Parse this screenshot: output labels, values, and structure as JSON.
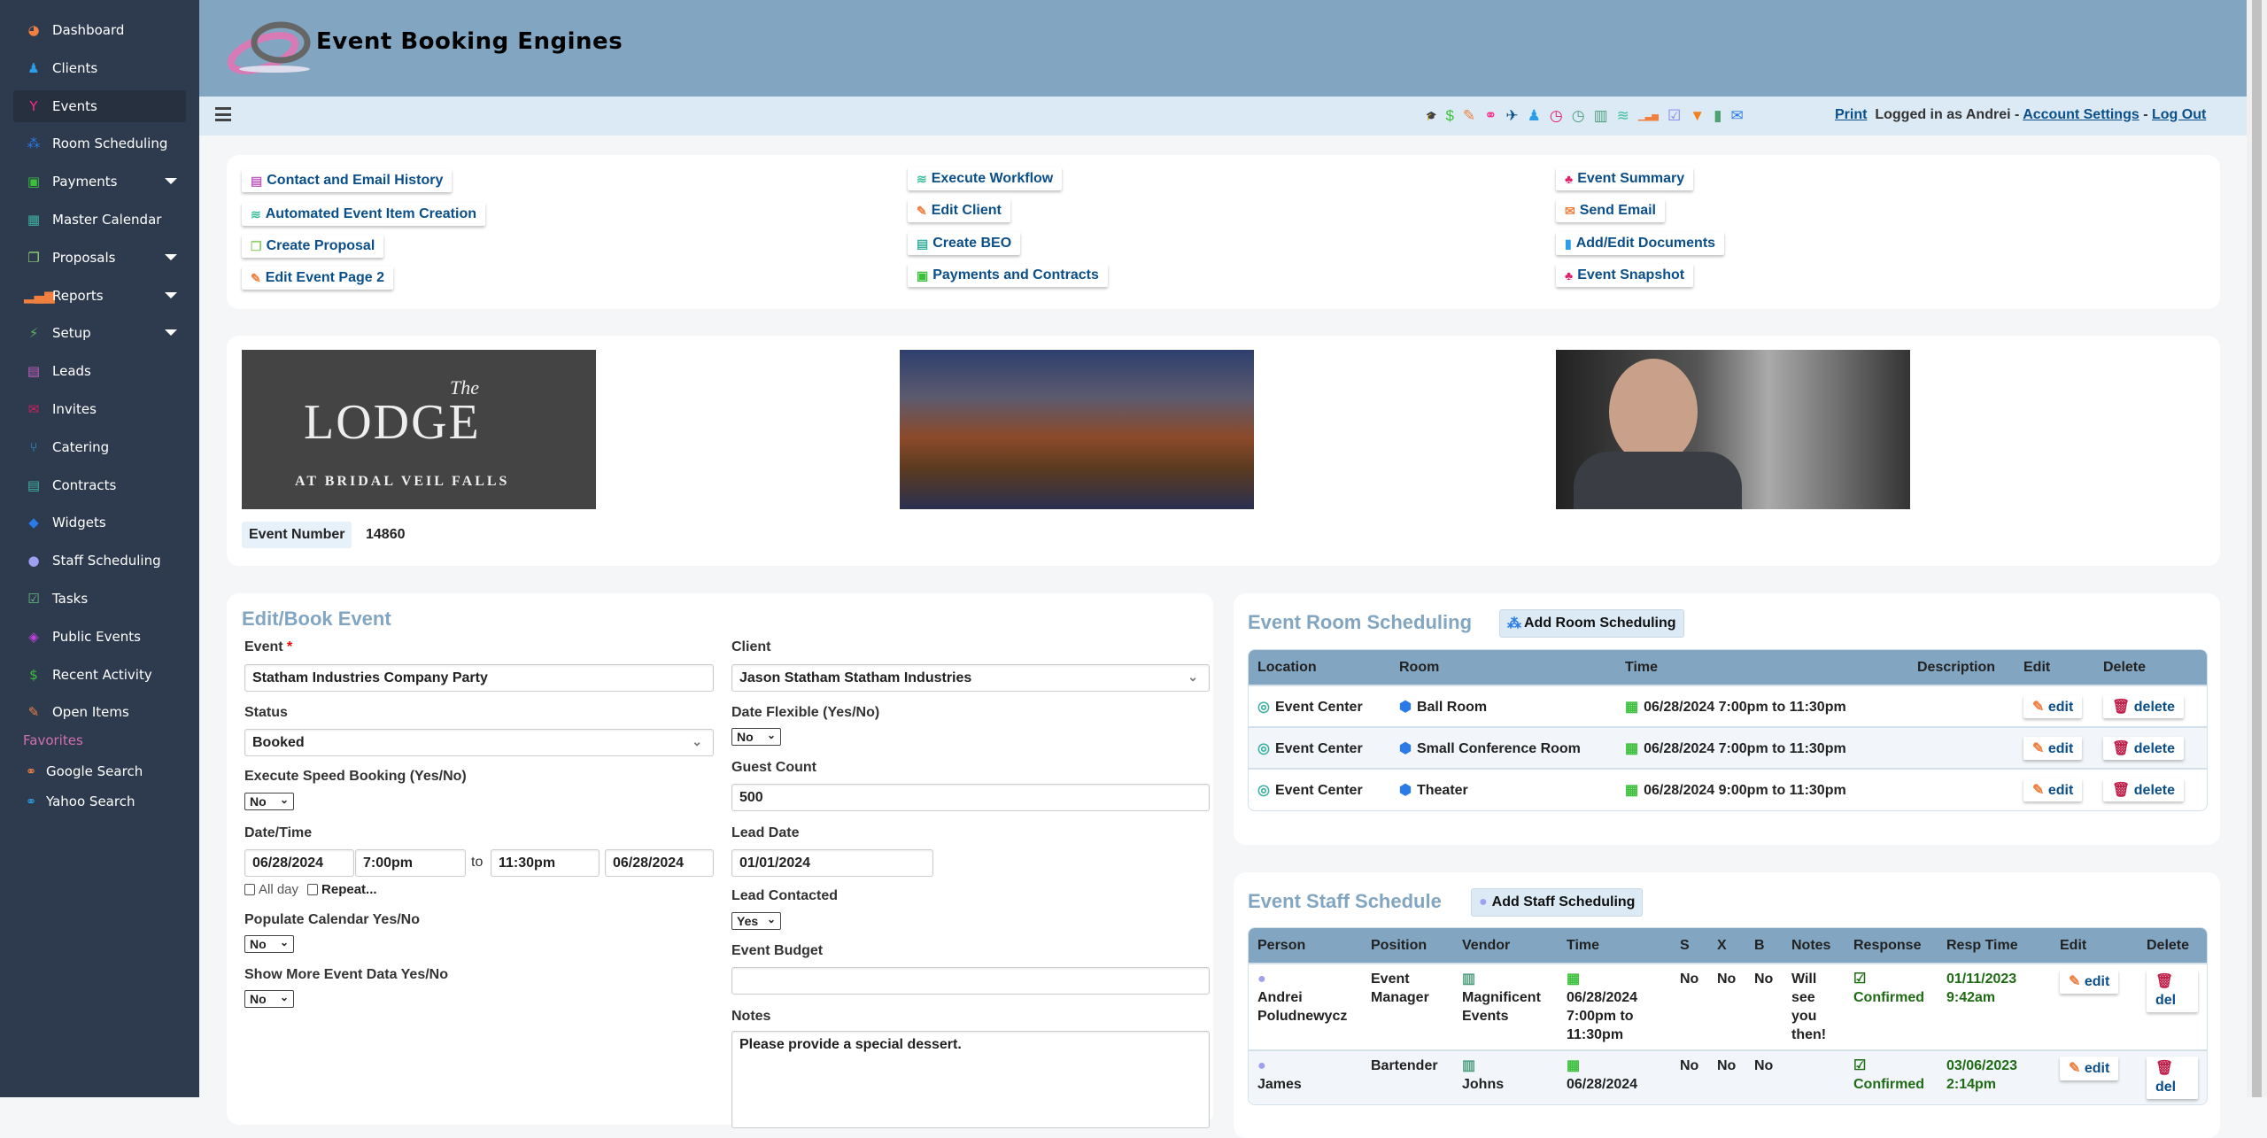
{
  "app": {
    "title": "Event Booking Engines"
  },
  "sidebar": {
    "items": [
      {
        "label": "Dashboard",
        "icon": "pie-chart-icon",
        "color": "#f08040"
      },
      {
        "label": "Clients",
        "icon": "person-icon",
        "color": "#2a9ee8"
      },
      {
        "label": "Events",
        "icon": "cocktail-icon",
        "color": "#ff2a8a",
        "active": true
      },
      {
        "label": "Room Scheduling",
        "icon": "cubes-icon",
        "color": "#2a7ae8"
      },
      {
        "label": "Payments",
        "icon": "money-icon",
        "color": "#3cc03c",
        "caret": true
      },
      {
        "label": "Master Calendar",
        "icon": "calendar-icon",
        "color": "#3cb0a0"
      },
      {
        "label": "Proposals",
        "icon": "copy-icon",
        "color": "#90d070",
        "caret": true
      },
      {
        "label": "Reports",
        "icon": "bar-chart-icon",
        "color": "#f08040",
        "caret": true
      },
      {
        "label": "Setup",
        "icon": "plug-icon",
        "color": "#60b060",
        "caret": true
      },
      {
        "label": "Leads",
        "icon": "list-icon",
        "color": "#c060c0"
      },
      {
        "label": "Invites",
        "icon": "envelope-icon",
        "color": "#d02060"
      },
      {
        "label": "Catering",
        "icon": "utensils-icon",
        "color": "#2a9ee8"
      },
      {
        "label": "Contracts",
        "icon": "document-icon",
        "color": "#3cb0a0"
      },
      {
        "label": "Widgets",
        "icon": "android-icon",
        "color": "#2a7ae8"
      },
      {
        "label": "Staff Scheduling",
        "icon": "user-icon",
        "color": "#a0a0f0"
      },
      {
        "label": "Tasks",
        "icon": "checkbox-icon",
        "color": "#60c080"
      },
      {
        "label": "Public Events",
        "icon": "ticket-icon",
        "color": "#c040e0"
      },
      {
        "label": "Recent Activity",
        "icon": "dollar-icon",
        "color": "#3cc03c"
      },
      {
        "label": "Open Items",
        "icon": "edit-icon",
        "color": "#f08040"
      }
    ],
    "favorites_label": "Favorites",
    "favorites": [
      {
        "label": "Google Search",
        "icon": "link-icon",
        "color": "#f08040"
      },
      {
        "label": "Yahoo Search",
        "icon": "link-icon",
        "color": "#2a9ee8"
      }
    ]
  },
  "toolbar": {
    "icons": [
      {
        "name": "graduation-cap-icon",
        "glyph": "🎓",
        "color": "#0b4f8a"
      },
      {
        "name": "dollar-icon",
        "glyph": "$",
        "color": "#3cc03c"
      },
      {
        "name": "edit-icon",
        "glyph": "✎",
        "color": "#f08040"
      },
      {
        "name": "link-icon",
        "glyph": "⚭",
        "color": "#ff2a8a"
      },
      {
        "name": "plane-icon",
        "glyph": "✈",
        "color": "#0b4f8a"
      },
      {
        "name": "person-icon",
        "glyph": "♟",
        "color": "#2a9ee8"
      },
      {
        "name": "clock-icon",
        "glyph": "◷",
        "color": "#e0206a"
      },
      {
        "name": "clock-alt-icon",
        "glyph": "◷",
        "color": "#50a080"
      },
      {
        "name": "building-icon",
        "glyph": "▥",
        "color": "#50a080"
      },
      {
        "name": "workflow-icon",
        "glyph": "≋",
        "color": "#40c0a0"
      },
      {
        "name": "signal-icon",
        "glyph": "▁▃▅",
        "color": "#f08040"
      },
      {
        "name": "checkbox-icon",
        "glyph": "☑",
        "color": "#8080f0"
      },
      {
        "name": "filter-icon",
        "glyph": "▼",
        "color": "#f08020"
      },
      {
        "name": "book-icon",
        "glyph": "▮",
        "color": "#50a070"
      },
      {
        "name": "envelope-icon",
        "glyph": "✉",
        "color": "#2a7ae8"
      }
    ],
    "print": "Print",
    "logged_in": "Logged in as Andrei",
    "sep": "-",
    "account_settings": "Account Settings",
    "logout": "Log Out"
  },
  "actions": {
    "col1": [
      {
        "label": "Contact and Email History",
        "icon": "list-icon",
        "color": "#c060c0"
      },
      {
        "label": "Automated Event Item Creation",
        "icon": "workflow-icon",
        "color": "#40c0a0"
      },
      {
        "label": "Create Proposal",
        "icon": "copy-icon",
        "color": "#90d070"
      },
      {
        "label": "Edit Event Page 2",
        "icon": "edit-icon",
        "color": "#f08040"
      }
    ],
    "col2": [
      {
        "label": "Execute Workflow",
        "icon": "workflow-icon",
        "color": "#40c0a0"
      },
      {
        "label": "Edit Client",
        "icon": "edit-icon",
        "color": "#f08040"
      },
      {
        "label": "Create BEO",
        "icon": "document-icon",
        "color": "#3cb0a0"
      },
      {
        "label": "Payments and Contracts",
        "icon": "money-icon",
        "color": "#3cc03c"
      }
    ],
    "col3": [
      {
        "label": "Event Summary",
        "icon": "sitemap-icon",
        "color": "#e0206a"
      },
      {
        "label": "Send Email",
        "icon": "envelope-icon",
        "color": "#f08040"
      },
      {
        "label": "Add/Edit Documents",
        "icon": "file-icon",
        "color": "#2a9ee8"
      },
      {
        "label": "Event Snapshot",
        "icon": "sitemap-icon",
        "color": "#e0206a"
      }
    ]
  },
  "media": {
    "venue_logo": {
      "line1": "The",
      "line2": "LODGE",
      "line3": "AT BRIDAL VEIL FALLS"
    },
    "event_number_label": "Event Number",
    "event_number": "14860"
  },
  "form": {
    "title": "Edit/Book Event",
    "event_label": "Event",
    "required": "*",
    "event_value": "Statham Industries Company Party",
    "status_label": "Status",
    "status_value": "Booked",
    "speed_label": "Execute Speed Booking (Yes/No)",
    "speed_value": "No",
    "datetime_label": "Date/Time",
    "start_date": "06/28/2024",
    "start_time": "7:00pm",
    "to": "to",
    "end_time": "11:30pm",
    "end_date": "06/28/2024",
    "allday_label": "All day",
    "repeat_label": "Repeat...",
    "populate_label": "Populate Calendar Yes/No",
    "populate_value": "No",
    "showmore_label": "Show More Event Data Yes/No",
    "showmore_value": "No",
    "client_label": "Client",
    "client_value": "Jason Statham Statham Industries",
    "flex_label": "Date Flexible (Yes/No)",
    "flex_value": "No",
    "guest_label": "Guest Count",
    "guest_value": "500",
    "lead_date_label": "Lead Date",
    "lead_date_value": "01/01/2024",
    "lead_contacted_label": "Lead Contacted",
    "lead_contacted_value": "Yes",
    "budget_label": "Event Budget",
    "budget_value": "",
    "notes_label": "Notes",
    "notes_value": "Please provide a special dessert."
  },
  "rooms": {
    "title": "Event Room Scheduling",
    "add_label": "Add Room Scheduling",
    "columns": [
      "Location",
      "Room",
      "Time",
      "Description",
      "Edit",
      "Delete"
    ],
    "rows": [
      {
        "location": "Event Center",
        "room": "Ball Room",
        "time": "06/28/2024 7:00pm to 11:30pm",
        "description": ""
      },
      {
        "location": "Event Center",
        "room": "Small Conference Room",
        "time": "06/28/2024 7:00pm to 11:30pm",
        "description": ""
      },
      {
        "location": "Event Center",
        "room": "Theater",
        "time": "06/28/2024 9:00pm to 11:30pm",
        "description": ""
      }
    ],
    "edit_label": "edit",
    "delete_label": "delete"
  },
  "staff": {
    "title": "Event Staff Schedule",
    "add_label": "Add Staff Scheduling",
    "columns": [
      "Person",
      "Position",
      "Vendor",
      "Time",
      "S",
      "X",
      "B",
      "Notes",
      "Response",
      "Resp Time",
      "Edit",
      "Delete"
    ],
    "rows": [
      {
        "person": "Andrei Poludnewycz",
        "position": "Event Manager",
        "vendor": "Magnificent Events",
        "time": "06/28/2024 7:00pm to 11:30pm",
        "s": "No",
        "x": "No",
        "b": "No",
        "notes": "Will see you then!",
        "response": "Confirmed",
        "resp_time": "01/11/2023 9:42am"
      },
      {
        "person": "James",
        "position": "Bartender",
        "vendor": "Johns",
        "time": "06/28/2024",
        "s": "No",
        "x": "No",
        "b": "No",
        "notes": "",
        "response": "Confirmed",
        "resp_time": "03/06/2023 2:14pm"
      }
    ],
    "edit_label": "edit",
    "delete_label": "del"
  }
}
